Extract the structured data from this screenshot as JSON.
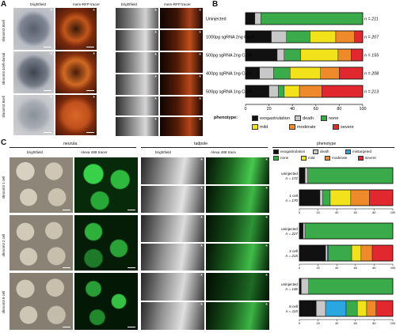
{
  "panelA": {
    "letter": "A",
    "col_headers": [
      "brightfield",
      "mem-RFP tracer",
      "brightfield",
      "mem-RFP tracer"
    ],
    "row_labels": [
      "shroom3 8cell",
      "shroom3 4cell dorsal",
      "shroom3 8cell"
    ]
  },
  "panelB": {
    "letter": "B",
    "legend_title": "phenotype:",
    "legend": [
      {
        "name": "exogastrulation",
        "color": "#111111"
      },
      {
        "name": "death",
        "color": "#c8c8c8"
      },
      {
        "name": "none",
        "color": "#3aaa4a"
      },
      {
        "name": "mild",
        "color": "#f1e21c"
      },
      {
        "name": "moderate",
        "color": "#ef8a2a"
      },
      {
        "name": "severe",
        "color": "#e0282e"
      }
    ]
  },
  "panelC": {
    "letter": "C",
    "group_headers": [
      "neurula",
      "tadpole",
      "phenotype"
    ],
    "col_headers": [
      "brightfield",
      "Alexa 488 tracer",
      "brightfield",
      "Alexa 488 trace"
    ],
    "row_labels": [
      "shroom3 1 cell",
      "shroom3 2 cell",
      "shroom3 8 cell"
    ],
    "legend": [
      {
        "name": "exogastrulation",
        "color": "#111111"
      },
      {
        "name": "death",
        "color": "#c8c8c8"
      },
      {
        "name": "mistargeted",
        "color": "#2aa6e0"
      },
      {
        "name": "none",
        "color": "#3aaa4a"
      },
      {
        "name": "mild",
        "color": "#f1e21c"
      },
      {
        "name": "moderate",
        "color": "#ef8a2a"
      },
      {
        "name": "severe",
        "color": "#e0282e"
      }
    ]
  },
  "chart_data": [
    {
      "type": "bar",
      "orientation": "horizontal",
      "stacked": true,
      "categories": [
        "Uninjected",
        "1000pg sgRNA 2ng Cas9",
        "500pg sgRNA 2ng Cas9",
        "400pg sgRNA 1ng Cas9",
        "500pg sgRNA 1ng Cas9"
      ],
      "n_labels": [
        "n = 211",
        "n = 207",
        "n = 155",
        "n = 208",
        "n = 213"
      ],
      "series": [
        {
          "name": "exogastrulation",
          "values": [
            8,
            22,
            27,
            12,
            20
          ]
        },
        {
          "name": "death",
          "values": [
            5,
            13,
            6,
            12,
            8
          ]
        },
        {
          "name": "none",
          "values": [
            87,
            20,
            14,
            14,
            5
          ]
        },
        {
          "name": "mild",
          "values": [
            0,
            22,
            32,
            26,
            13
          ]
        },
        {
          "name": "moderate",
          "values": [
            0,
            16,
            11,
            16,
            19
          ]
        },
        {
          "name": "severe",
          "values": [
            0,
            7,
            10,
            20,
            35
          ]
        }
      ],
      "xlim": [
        0,
        100
      ],
      "xticks": [
        0,
        20,
        40,
        60,
        80,
        100
      ]
    },
    {
      "type": "bar",
      "orientation": "horizontal",
      "stacked": true,
      "categories": [
        "uninjected",
        "1 cell",
        "uninjected",
        "2 cell",
        "uninjected",
        "8 cell"
      ],
      "n_labels": [
        "n = 172",
        "n = 170",
        "n = 227",
        "n = 215",
        "n = 146",
        "n = 115"
      ],
      "series": [
        {
          "name": "exogastrulation",
          "values": [
            6,
            22,
            4,
            28,
            2,
            18
          ]
        },
        {
          "name": "death",
          "values": [
            3,
            3,
            2,
            2,
            8,
            10
          ]
        },
        {
          "name": "mistargeted",
          "values": [
            0,
            0,
            0,
            1,
            0,
            22
          ]
        },
        {
          "name": "none",
          "values": [
            91,
            8,
            94,
            25,
            90,
            12
          ]
        },
        {
          "name": "mild",
          "values": [
            0,
            22,
            0,
            10,
            0,
            10
          ]
        },
        {
          "name": "moderate",
          "values": [
            0,
            20,
            0,
            12,
            0,
            10
          ]
        },
        {
          "name": "severe",
          "values": [
            0,
            25,
            0,
            22,
            0,
            18
          ]
        }
      ],
      "xlim": [
        0,
        100
      ],
      "xticks": [
        0,
        20,
        40,
        60,
        80,
        100
      ]
    }
  ]
}
